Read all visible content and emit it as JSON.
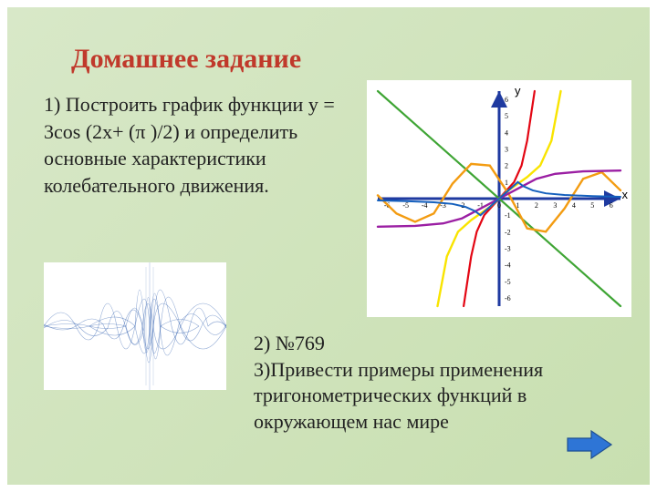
{
  "title": "Домашнее задание",
  "q1": "1) Построить график функции y = 3cos (2x+ (π )/2) и определить основные характеристики колебательного движения.",
  "q2": "2) №769",
  "q3": "3)Привести примеры применения тригонометрических функций в окружающем нас мире",
  "chart": {
    "type": "line",
    "xlabel": "х",
    "ylabel": "у",
    "xlim": [
      -6.5,
      6.5
    ],
    "ylim": [
      -6.5,
      6.5
    ],
    "xticks": [
      -6,
      -5,
      -4,
      -3,
      -2,
      -1,
      0,
      1,
      2,
      3,
      4,
      5,
      6
    ],
    "yticks": [
      -6,
      -5,
      -4,
      -3,
      -2,
      -1,
      1,
      2,
      3,
      4,
      5,
      6
    ],
    "background_color": "#ffffff",
    "axis_color": "#1f3aa0",
    "axis_width": 3,
    "tick_fontsize": 8,
    "label_fontsize": 13,
    "curves": {
      "red": {
        "color": "#e30613",
        "width": 2.2,
        "points": [
          [
            -1.9,
            -6.5
          ],
          [
            -1.7,
            -5
          ],
          [
            -1.5,
            -3.5
          ],
          [
            -1.2,
            -2
          ],
          [
            -0.8,
            -1
          ],
          [
            0,
            0
          ],
          [
            0.8,
            1
          ],
          [
            1.2,
            2
          ],
          [
            1.5,
            3.5
          ],
          [
            1.7,
            5
          ],
          [
            1.9,
            6.5
          ]
        ]
      },
      "green": {
        "color": "#3fa535",
        "width": 2.2,
        "points": [
          [
            -6.5,
            6.5
          ],
          [
            6.5,
            -6.5
          ]
        ]
      },
      "orange": {
        "color": "#f39c12",
        "width": 2.4,
        "points": [
          [
            -6.5,
            0.2
          ],
          [
            -5.5,
            -0.9
          ],
          [
            -4.5,
            -1.4
          ],
          [
            -3.5,
            -0.9
          ],
          [
            -2.5,
            0.9
          ],
          [
            -1.5,
            2.1
          ],
          [
            -0.5,
            2.0
          ],
          [
            0.5,
            0.3
          ],
          [
            1.5,
            -1.8
          ],
          [
            2.5,
            -2.0
          ],
          [
            3.5,
            -0.6
          ],
          [
            4.5,
            1.2
          ],
          [
            5.5,
            1.6
          ],
          [
            6.5,
            0.5
          ]
        ]
      },
      "yellow": {
        "color": "#f9e400",
        "width": 2.4,
        "points": [
          [
            -3.3,
            -6.5
          ],
          [
            -2.8,
            -3.5
          ],
          [
            -2.2,
            -2
          ],
          [
            -1.5,
            -1.3
          ],
          [
            -0.5,
            -0.5
          ],
          [
            0.5,
            0.5
          ],
          [
            1.5,
            1.3
          ],
          [
            2.2,
            2
          ],
          [
            2.8,
            3.5
          ],
          [
            3.3,
            6.5
          ]
        ]
      },
      "purple": {
        "color": "#9b1fa3",
        "width": 2.4,
        "points": [
          [
            -6.5,
            -1.7
          ],
          [
            -4.5,
            -1.65
          ],
          [
            -3,
            -1.5
          ],
          [
            -2,
            -1.2
          ],
          [
            -1,
            -0.6
          ],
          [
            0,
            0
          ],
          [
            1,
            0.6
          ],
          [
            2,
            1.2
          ],
          [
            3,
            1.5
          ],
          [
            4.5,
            1.65
          ],
          [
            6.5,
            1.7
          ]
        ]
      },
      "blue": {
        "color": "#1560bd",
        "width": 2.0,
        "points": [
          [
            -6.5,
            -0.11
          ],
          [
            -5,
            -0.15
          ],
          [
            -3.5,
            -0.22
          ],
          [
            -2.5,
            -0.32
          ],
          [
            -1.8,
            -0.5
          ],
          [
            -1.3,
            -0.75
          ],
          [
            -1,
            -1.0
          ],
          [
            1,
            1.0
          ],
          [
            1.3,
            0.75
          ],
          [
            1.8,
            0.5
          ],
          [
            2.5,
            0.32
          ],
          [
            3.5,
            0.22
          ],
          [
            5,
            0.15
          ],
          [
            6.5,
            0.11
          ]
        ]
      }
    }
  },
  "wave_graphic": {
    "type": "infographic-image",
    "color": "#1b4fa8",
    "background_color": "#ffffff",
    "description": "blue chaotic spiky waveform bundle"
  },
  "arrow": {
    "fill": "#2e75d6",
    "stroke": "#1f4f92",
    "width": 52,
    "height": 34
  },
  "slide_bg_gradient": [
    "#d8e8c8",
    "#c8dfb0"
  ],
  "border_color": "#ffffff",
  "border_width": 8,
  "title_color": "#c0392b",
  "text_color": "#222222",
  "title_fontsize": 30,
  "body_fontsize": 22
}
